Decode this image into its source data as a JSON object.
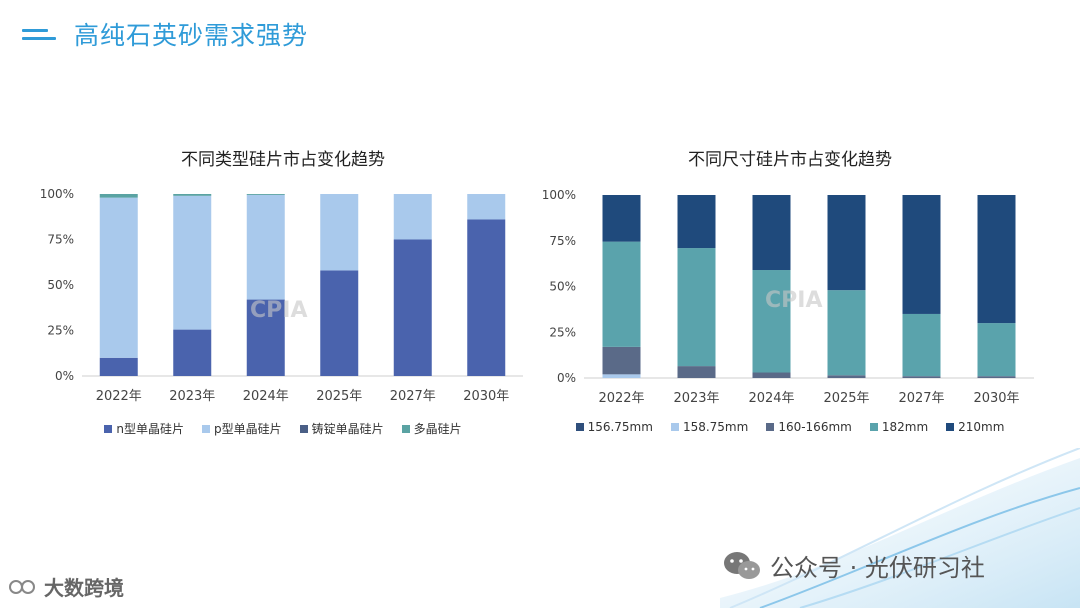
{
  "header": {
    "title": "高纯石英砂需求强势"
  },
  "watermark_text": "CPIA",
  "footer": {
    "wechat_text": "公众号 · 光伏研习社",
    "brand_text": "大数跨境"
  },
  "chart_data": [
    {
      "type": "bar",
      "stacked": true,
      "title": "不同类型硅片市占变化趋势",
      "categories": [
        "2022年",
        "2023年",
        "2024年",
        "2025年",
        "2027年",
        "2030年"
      ],
      "ylim": [
        0,
        100
      ],
      "yticks": [
        "0%",
        "25%",
        "50%",
        "75%",
        "100%"
      ],
      "series": [
        {
          "name": "n型单晶硅片",
          "color": "#4a63ad",
          "values": [
            10,
            25.5,
            42,
            58,
            75,
            86
          ]
        },
        {
          "name": "p型单晶硅片",
          "color": "#a9c9ec",
          "values": [
            88,
            73.5,
            57.5,
            42,
            25,
            14
          ]
        },
        {
          "name": "铸锭单晶硅片",
          "color": "#4a5f86",
          "values": [
            0,
            0,
            0,
            0,
            0,
            0
          ]
        },
        {
          "name": "多晶硅片",
          "color": "#5aa3a3",
          "values": [
            2,
            1,
            0.5,
            0,
            0,
            0
          ]
        }
      ]
    },
    {
      "type": "bar",
      "stacked": true,
      "title": "不同尺寸硅片市占变化趋势",
      "categories": [
        "2022年",
        "2023年",
        "2024年",
        "2025年",
        "2027年",
        "2030年"
      ],
      "ylim": [
        0,
        100
      ],
      "yticks": [
        "0%",
        "25%",
        "50%",
        "75%",
        "100%"
      ],
      "series": [
        {
          "name": "156.75mm",
          "color": "#2f4f7c",
          "values": [
            0,
            0,
            0,
            0,
            0,
            0
          ]
        },
        {
          "name": "158.75mm",
          "color": "#a9c9ec",
          "values": [
            2,
            0,
            0,
            0,
            0,
            0
          ]
        },
        {
          "name": "160-166mm",
          "color": "#5a6a88",
          "values": [
            15,
            6.5,
            3,
            1.5,
            1,
            1
          ]
        },
        {
          "name": "182mm",
          "color": "#5aa3ac",
          "values": [
            57.5,
            64.5,
            56,
            46.5,
            34,
            29
          ]
        },
        {
          "name": "210mm",
          "color": "#1f4a7c",
          "values": [
            25.5,
            29,
            41,
            52,
            65,
            70
          ]
        }
      ]
    }
  ]
}
